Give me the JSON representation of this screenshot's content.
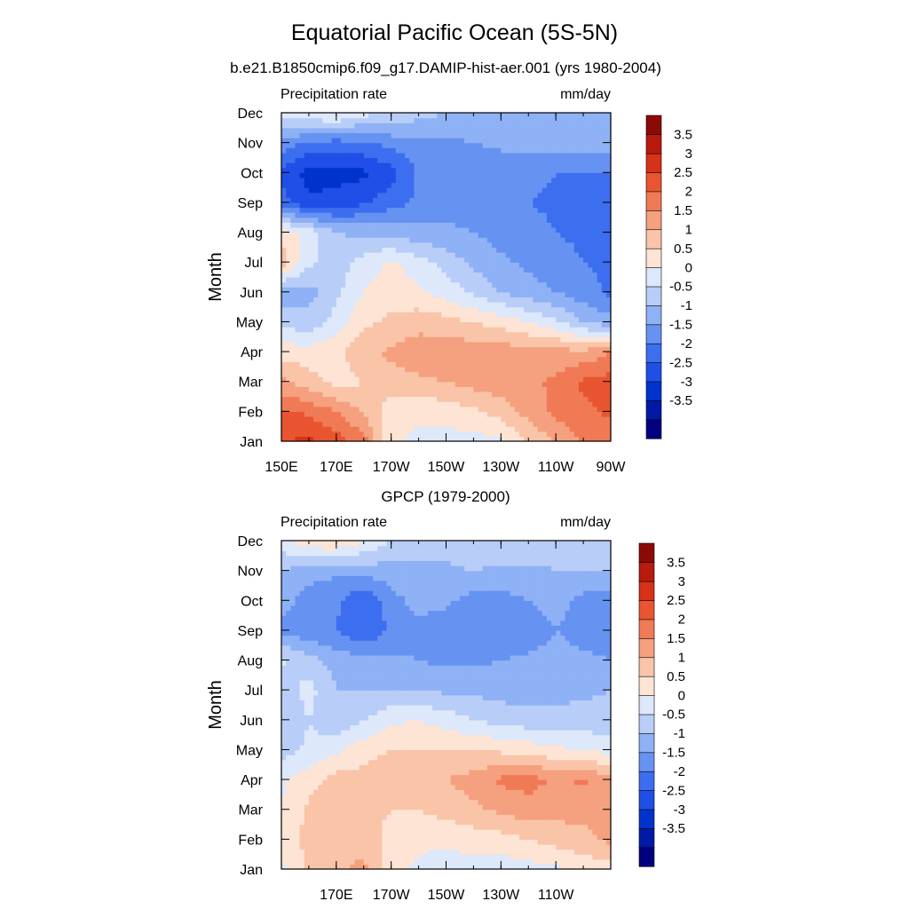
{
  "title": "Equatorial Pacific Ocean (5S-5N)",
  "colors": {
    "levels": [
      "#000080",
      "#0019a6",
      "#0033cc",
      "#1f4fe6",
      "#3d6ef0",
      "#6693f2",
      "#8fb1f5",
      "#b8cdf8",
      "#dde8fb",
      "#fde4d5",
      "#f9c4a8",
      "#f5a07e",
      "#f07a55",
      "#e85530",
      "#d73218",
      "#b81b0d",
      "#8b0a05"
    ],
    "axis": "#000000"
  },
  "chart_data": [
    {
      "type": "heatmap",
      "title": "b.e21.B1850cmip6.f09_g17.DAMIP-hist-aer.001 (yrs 1980-2004)",
      "variable_label": "Precipitation rate",
      "units_label": "mm/day",
      "xlabel": "",
      "ylabel": "Month",
      "x_range": [
        150,
        270
      ],
      "x_ticks": [
        150,
        170,
        190,
        210,
        230,
        250,
        270
      ],
      "x_tick_labels": [
        "150E",
        "170E",
        "170W",
        "150W",
        "130W",
        "110W",
        "90W"
      ],
      "y_ticks": [
        "Jan",
        "Feb",
        "Mar",
        "Apr",
        "May",
        "Jun",
        "Jul",
        "Aug",
        "Sep",
        "Oct",
        "Nov",
        "Dec"
      ],
      "x_nodes": [
        150,
        160,
        170,
        180,
        190,
        200,
        210,
        220,
        230,
        240,
        250,
        260,
        270
      ],
      "values": [
        [
          3.0,
          3.1,
          2.8,
          2.2,
          0.6,
          0.4,
          0.3,
          0.3,
          0.4,
          1.0,
          1.6,
          2.0,
          2.2
        ],
        [
          2.6,
          2.4,
          2.0,
          1.4,
          0.7,
          0.6,
          0.7,
          0.9,
          1.2,
          1.7,
          2.1,
          2.4,
          2.6
        ],
        [
          1.6,
          1.2,
          0.8,
          1.0,
          1.3,
          1.4,
          1.5,
          1.7,
          1.8,
          1.9,
          2.1,
          2.6,
          2.7
        ],
        [
          0.8,
          0.7,
          0.9,
          1.3,
          1.6,
          1.8,
          1.8,
          1.8,
          1.8,
          1.7,
          1.7,
          1.6,
          2.0
        ],
        [
          -0.2,
          -0.3,
          0.2,
          0.9,
          1.1,
          1.3,
          1.2,
          1.0,
          0.8,
          0.5,
          0.1,
          -0.5,
          -0.8
        ],
        [
          -0.8,
          -0.7,
          -0.1,
          0.5,
          0.8,
          0.6,
          0.3,
          -0.1,
          -0.5,
          -0.8,
          -1.0,
          -1.3,
          -1.6
        ],
        [
          1.3,
          0.1,
          -0.3,
          0.2,
          0.6,
          0.2,
          -0.2,
          -0.6,
          -0.9,
          -1.1,
          -1.3,
          -1.5,
          -1.6
        ],
        [
          0.8,
          0.3,
          -0.5,
          -0.6,
          -0.7,
          -0.8,
          -0.9,
          -1.0,
          -1.2,
          -1.3,
          -1.5,
          -1.6,
          -1.7
        ],
        [
          -1.8,
          -2.4,
          -2.3,
          -2.1,
          -1.7,
          -1.4,
          -1.2,
          -1.3,
          -1.4,
          -1.5,
          -1.6,
          -1.6,
          -1.7
        ],
        [
          -2.1,
          -2.7,
          -2.7,
          -2.6,
          -2.2,
          -1.4,
          -1.3,
          -1.3,
          -1.3,
          -1.4,
          -1.5,
          -1.5,
          -1.5
        ],
        [
          -1.2,
          -1.6,
          -1.7,
          -1.6,
          -1.3,
          -1.2,
          -1.1,
          -1.0,
          -0.9,
          -0.8,
          -0.8,
          -0.8,
          -0.8
        ],
        [
          0.4,
          0.5,
          0.6,
          0.2,
          -0.1,
          -0.3,
          -0.5,
          -0.6,
          -0.6,
          -0.7,
          -0.7,
          -0.7,
          -0.7
        ]
      ],
      "colorbar_labels": [
        "3.5",
        "3",
        "2.5",
        "2",
        "1.5",
        "1",
        "0.5",
        "0",
        "-0.5",
        "-1",
        "-1.5",
        "-2",
        "-2.5",
        "-3",
        "-3.5"
      ],
      "levels": [
        -4,
        -3.5,
        -3,
        -2.5,
        -2,
        -1.5,
        -1,
        -0.5,
        0,
        0.5,
        1,
        1.5,
        2,
        2.5,
        3,
        3.5,
        4
      ]
    },
    {
      "type": "heatmap",
      "title": "GPCP (1979-2000)",
      "variable_label": "Precipitation rate",
      "units_label": "mm/day",
      "xlabel": "",
      "ylabel": "Month",
      "x_range": [
        150,
        270
      ],
      "x_ticks": [
        170,
        190,
        210,
        230,
        250
      ],
      "x_tick_labels": [
        "170E",
        "170W",
        "150W",
        "130W",
        "110W"
      ],
      "y_ticks": [
        "Jan",
        "Feb",
        "Mar",
        "Apr",
        "May",
        "Jun",
        "Jul",
        "Aug",
        "Sep",
        "Oct",
        "Nov",
        "Dec"
      ],
      "x_nodes": [
        150,
        160,
        170,
        180,
        190,
        200,
        210,
        220,
        230,
        240,
        250,
        260,
        270
      ],
      "values": [
        [
          0.4,
          1.1,
          1.4,
          1.6,
          0.7,
          0.4,
          0.3,
          0.3,
          0.2,
          0.3,
          0.4,
          0.6,
          0.8
        ],
        [
          0.6,
          1.2,
          1.5,
          1.3,
          0.8,
          0.6,
          0.6,
          0.7,
          0.8,
          1.0,
          1.2,
          1.4,
          1.6
        ],
        [
          0.5,
          1.1,
          1.4,
          1.2,
          1.0,
          1.0,
          1.2,
          1.4,
          1.6,
          1.8,
          1.7,
          1.6,
          1.6
        ],
        [
          0.4,
          0.8,
          1.2,
          1.2,
          1.3,
          1.4,
          1.5,
          1.7,
          2.1,
          2.2,
          1.9,
          2.1,
          1.6
        ],
        [
          -0.2,
          0.1,
          0.4,
          0.8,
          1.0,
          1.0,
          1.0,
          1.0,
          0.9,
          0.8,
          0.6,
          0.5,
          0.3
        ],
        [
          -0.5,
          0.0,
          -0.4,
          0.0,
          0.4,
          0.5,
          0.3,
          0.0,
          -0.2,
          -0.3,
          -0.3,
          -0.3,
          -0.3
        ],
        [
          -0.3,
          0.2,
          -0.5,
          -0.5,
          -0.5,
          -0.5,
          -0.6,
          -0.6,
          -0.7,
          -0.7,
          -0.7,
          -0.6,
          -0.5
        ],
        [
          0.1,
          -0.3,
          -0.7,
          -0.8,
          -0.9,
          -1.0,
          -1.1,
          -1.1,
          -1.0,
          -0.9,
          -0.8,
          -0.9,
          -1.0
        ],
        [
          -1.1,
          -1.4,
          -1.5,
          -2.0,
          -1.4,
          -1.2,
          -1.3,
          -1.4,
          -1.4,
          -1.3,
          -1.0,
          -1.2,
          -1.3
        ],
        [
          -0.8,
          -1.2,
          -1.4,
          -2.0,
          -1.2,
          -0.8,
          -0.9,
          -1.2,
          -1.2,
          -1.0,
          -0.8,
          -1.2,
          -1.2
        ],
        [
          -0.5,
          -0.8,
          -0.9,
          -0.8,
          -0.7,
          -0.6,
          -0.6,
          -0.5,
          -0.6,
          -0.6,
          -0.5,
          -0.5,
          -0.5
        ],
        [
          0.3,
          0.9,
          1.0,
          0.5,
          0.0,
          -0.3,
          -0.3,
          -0.2,
          -0.2,
          -0.2,
          -0.3,
          -0.3,
          -0.3
        ]
      ],
      "colorbar_labels": [
        "3.5",
        "3",
        "2.5",
        "2",
        "1.5",
        "1",
        "0.5",
        "0",
        "-0.5",
        "-1",
        "-1.5",
        "-2",
        "-2.5",
        "-3",
        "-3.5"
      ],
      "levels": [
        -4,
        -3.5,
        -3,
        -2.5,
        -2,
        -1.5,
        -1,
        -0.5,
        0,
        0.5,
        1,
        1.5,
        2,
        2.5,
        3,
        3.5,
        4
      ]
    }
  ]
}
